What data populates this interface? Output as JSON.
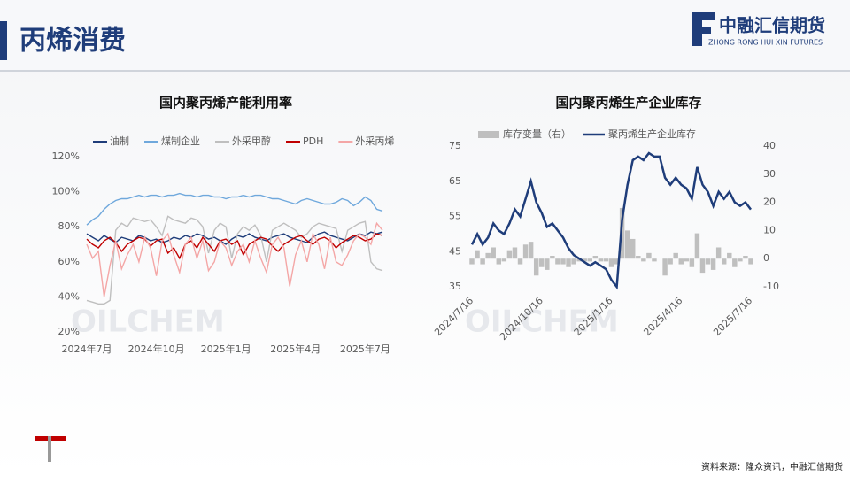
{
  "header": {
    "title": "丙烯消费",
    "company": "中融汇信期货",
    "company_en": "ZHONG RONG HUI XIN FUTURES"
  },
  "watermark": "OILCHEM",
  "footer": {
    "source": "资料来源：隆众资讯，中融汇信期货"
  },
  "chart_data": [
    {
      "type": "line",
      "title": "国内聚丙烯产能利用率",
      "categories": [
        "2024年7月",
        null,
        null,
        null,
        null,
        null,
        null,
        null,
        null,
        null,
        null,
        null,
        "2024年10月",
        null,
        null,
        null,
        null,
        null,
        null,
        null,
        null,
        null,
        null,
        null,
        "2025年1月",
        null,
        null,
        null,
        null,
        null,
        null,
        null,
        null,
        null,
        null,
        null,
        "2025年4月",
        null,
        null,
        null,
        null,
        null,
        null,
        null,
        null,
        null,
        null,
        null,
        "2025年7月",
        null,
        null,
        null
      ],
      "ylim": [
        20,
        120
      ],
      "yticks": [
        {
          "value": 20,
          "label": "20%"
        },
        {
          "value": 40,
          "label": "40%"
        },
        {
          "value": 60,
          "label": "60%"
        },
        {
          "value": 80,
          "label": "80%"
        },
        {
          "value": 100,
          "label": "100%"
        },
        {
          "value": 120,
          "label": "120%"
        }
      ],
      "grid": false,
      "series": [
        {
          "name": "油制",
          "color": "#1f3d7a",
          "values": [
            76,
            74,
            72,
            75,
            73,
            71,
            74,
            73,
            72,
            75,
            74,
            72,
            73,
            71,
            72,
            74,
            73,
            75,
            74,
            76,
            75,
            73,
            74,
            72,
            70,
            73,
            75,
            74,
            76,
            74,
            73,
            72,
            74,
            75,
            76,
            74,
            73,
            72,
            71,
            74,
            76,
            77,
            75,
            74,
            73,
            72,
            74,
            76,
            75,
            77,
            76,
            77
          ]
        },
        {
          "name": "煤制企业",
          "color": "#6fa8dc",
          "values": [
            81,
            84,
            86,
            90,
            93,
            95,
            96,
            96,
            97,
            98,
            97,
            98,
            98,
            97,
            98,
            98,
            99,
            98,
            98,
            97,
            98,
            98,
            97,
            97,
            96,
            97,
            97,
            98,
            97,
            98,
            98,
            97,
            96,
            96,
            95,
            94,
            93,
            95,
            96,
            95,
            94,
            93,
            93,
            94,
            96,
            95,
            92,
            94,
            97,
            95,
            90,
            89
          ]
        },
        {
          "name": "外采甲醇",
          "color": "#bfbfbf",
          "values": [
            38,
            37,
            36,
            36,
            38,
            78,
            82,
            80,
            85,
            84,
            83,
            84,
            80,
            75,
            86,
            84,
            83,
            82,
            85,
            84,
            80,
            65,
            78,
            82,
            80,
            62,
            76,
            80,
            78,
            81,
            75,
            60,
            78,
            80,
            82,
            80,
            78,
            74,
            76,
            80,
            82,
            81,
            80,
            79,
            66,
            78,
            80,
            82,
            83,
            60,
            56,
            55
          ]
        },
        {
          "name": "PDH",
          "color": "#c00000",
          "values": [
            73,
            70,
            68,
            72,
            74,
            71,
            66,
            70,
            72,
            74,
            73,
            69,
            72,
            73,
            65,
            68,
            62,
            70,
            72,
            68,
            74,
            70,
            66,
            72,
            73,
            70,
            72,
            64,
            70,
            72,
            74,
            73,
            69,
            66,
            70,
            72,
            74,
            75,
            72,
            70,
            73,
            74,
            72,
            68,
            71,
            73,
            75,
            74,
            72,
            73,
            76,
            75
          ]
        },
        {
          "name": "外采丙烯",
          "color": "#f4a6a6",
          "values": [
            70,
            62,
            66,
            40,
            58,
            72,
            56,
            64,
            70,
            60,
            74,
            68,
            52,
            72,
            76,
            64,
            54,
            70,
            74,
            62,
            72,
            55,
            60,
            72,
            68,
            58,
            66,
            70,
            60,
            72,
            62,
            54,
            70,
            74,
            68,
            46,
            64,
            72,
            60,
            76,
            70,
            56,
            74,
            60,
            58,
            64,
            72,
            76,
            74,
            70,
            82,
            78
          ]
        }
      ]
    },
    {
      "type": "combo",
      "title": "国内聚丙烯生产企业库存",
      "categories": [
        "2024/7/16",
        null,
        null,
        null,
        null,
        null,
        null,
        null,
        null,
        null,
        null,
        null,
        null,
        "2024/10/16",
        null,
        null,
        null,
        null,
        null,
        null,
        null,
        null,
        null,
        null,
        null,
        null,
        "2025/1/16",
        null,
        null,
        null,
        null,
        null,
        null,
        null,
        null,
        null,
        null,
        null,
        null,
        "2025/4/16",
        null,
        null,
        null,
        null,
        null,
        null,
        null,
        null,
        null,
        null,
        null,
        null,
        "2025/7/16"
      ],
      "ylim": [
        35,
        75
      ],
      "yticks": [
        35,
        45,
        55,
        65,
        75
      ],
      "y2lim": [
        -10,
        40
      ],
      "y2ticks": [
        -10,
        0,
        10,
        20,
        30,
        40
      ],
      "grid": false,
      "series": [
        {
          "name": "库存变量（右）",
          "type": "bar",
          "axis": "y2",
          "color": "#bfbfbf",
          "values": [
            -2,
            3,
            -2,
            2,
            4,
            -2,
            -1,
            3,
            4,
            -2,
            5,
            6,
            -6,
            -3,
            -4,
            1,
            -2,
            -2,
            -3,
            -2,
            -1,
            -1,
            -1,
            1,
            -1,
            -1,
            -3,
            -2,
            18,
            10,
            7,
            1,
            -1,
            2,
            -1,
            0,
            -6,
            -2,
            2,
            -2,
            -1,
            -3,
            9,
            -5,
            -2,
            -4,
            4,
            -2,
            2,
            -3,
            -1,
            1,
            -2
          ]
        },
        {
          "name": "聚丙烯生产企业库存",
          "type": "line",
          "color": "#1f3d7a",
          "values": [
            47,
            50,
            47,
            49,
            53,
            51,
            50,
            53,
            57,
            55,
            60,
            65,
            59,
            56,
            52,
            53,
            51,
            49,
            46,
            44,
            43,
            42,
            41,
            42,
            41,
            40,
            37,
            35,
            54,
            64,
            71,
            72,
            71,
            73,
            72,
            72,
            66,
            64,
            66,
            64,
            63,
            60,
            69,
            64,
            62,
            58,
            62,
            60,
            62,
            59,
            58,
            59,
            57
          ]
        }
      ]
    }
  ]
}
